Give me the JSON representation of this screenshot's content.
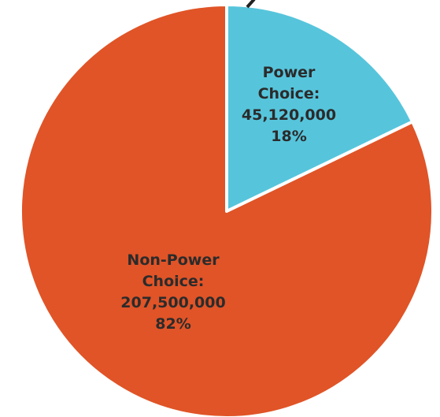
{
  "chart_data": {
    "type": "pie",
    "slices": [
      {
        "label_lines": [
          "Power",
          "Choice:",
          "45,120,000",
          "18%"
        ],
        "value": 45120000,
        "percent": 18,
        "color": "#56c5dc"
      },
      {
        "label_lines": [
          "Non-Power",
          "Choice:",
          "207,500,000",
          "82%"
        ],
        "value": 207500000,
        "percent": 82,
        "color": "#e05427"
      }
    ],
    "start_angle_deg": 0,
    "direction": "clockwise",
    "slice_border_color": "#ffffff"
  }
}
